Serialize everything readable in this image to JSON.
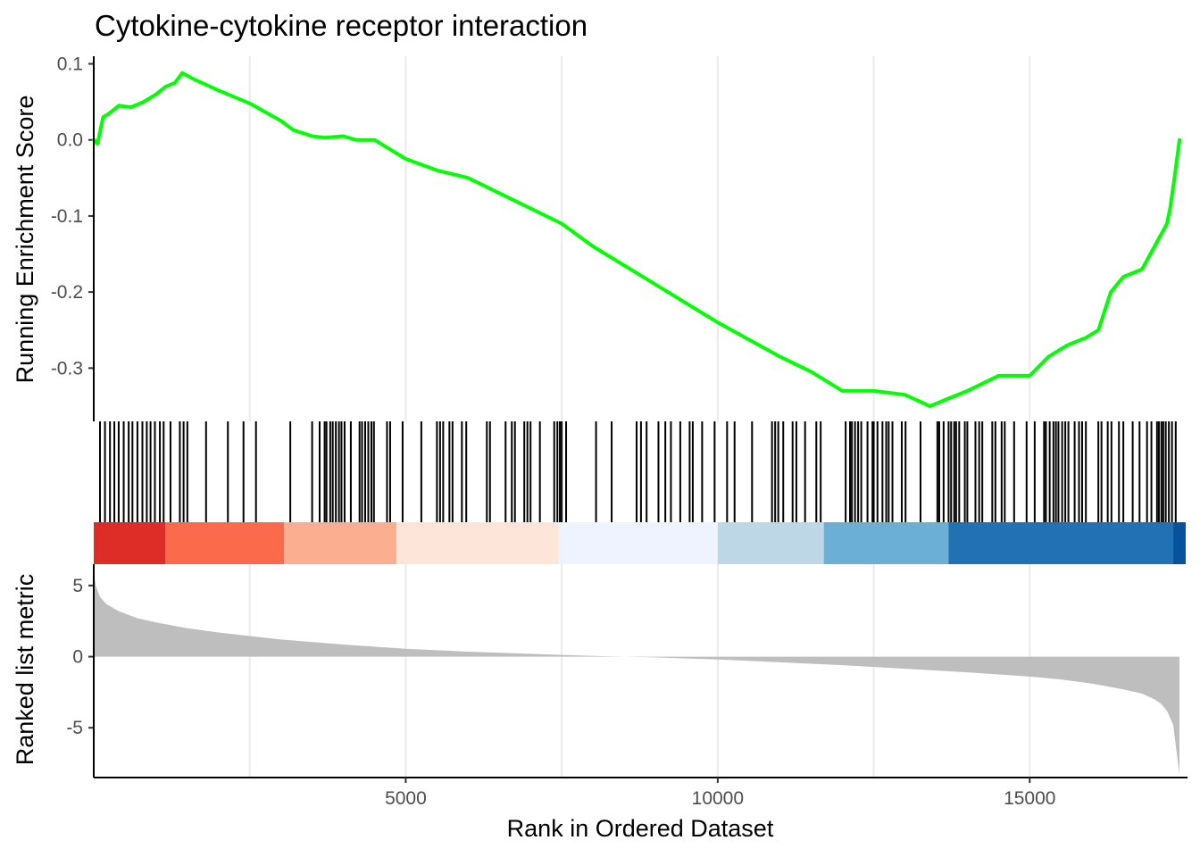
{
  "chart_data": {
    "type": "line",
    "title": "Cytokine-cytokine receptor interaction",
    "xlabel": "Rank in Ordered Dataset",
    "xlim": [
      0,
      17500
    ],
    "x_ticks": [
      {
        "value": 5000,
        "label": "5000"
      },
      {
        "value": 10000,
        "label": "10000"
      },
      {
        "value": 15000,
        "label": "15000"
      }
    ],
    "x_gridlines": [
      2500,
      5000,
      7500,
      10000,
      12500,
      15000
    ],
    "grid": true,
    "running_score": {
      "ylabel": "Running Enrichment Score",
      "ylim": [
        -0.37,
        0.11
      ],
      "color": "#00FF00",
      "y_ticks": [
        {
          "value": 0.1,
          "label": "0.1"
        },
        {
          "value": 0.0,
          "label": "0.0"
        },
        {
          "value": -0.1,
          "label": "-0.1"
        },
        {
          "value": -0.2,
          "label": "-0.2"
        },
        {
          "value": -0.3,
          "label": "-0.3"
        }
      ],
      "x": [
        0,
        60,
        150,
        250,
        400,
        600,
        800,
        1000,
        1150,
        1300,
        1420,
        1600,
        2000,
        2500,
        3000,
        3200,
        3500,
        3700,
        4000,
        4200,
        4500,
        5000,
        5500,
        6000,
        6500,
        7000,
        7500,
        8000,
        9000,
        10000,
        11000,
        11500,
        12000,
        12500,
        13000,
        13400,
        13700,
        14000,
        14500,
        15000,
        15300,
        15600,
        15900,
        16100,
        16300,
        16500,
        16800,
        17000,
        17200,
        17250,
        17320,
        17400
      ],
      "y": [
        0.0,
        -0.005,
        0.03,
        0.035,
        0.045,
        0.043,
        0.05,
        0.06,
        0.07,
        0.075,
        0.088,
        0.08,
        0.065,
        0.048,
        0.025,
        0.013,
        0.005,
        0.003,
        0.005,
        0.0,
        0.0,
        -0.025,
        -0.04,
        -0.05,
        -0.07,
        -0.09,
        -0.11,
        -0.14,
        -0.19,
        -0.24,
        -0.285,
        -0.305,
        -0.33,
        -0.33,
        -0.335,
        -0.35,
        -0.34,
        -0.33,
        -0.31,
        -0.31,
        -0.285,
        -0.27,
        -0.26,
        -0.25,
        -0.2,
        -0.18,
        -0.17,
        -0.14,
        -0.11,
        -0.09,
        -0.05,
        0.0
      ]
    },
    "gene_hits": {
      "positions": [
        100,
        180,
        260,
        330,
        400,
        480,
        560,
        620,
        700,
        780,
        850,
        910,
        980,
        1060,
        1120,
        1230,
        1380,
        1440,
        1500,
        1800,
        2150,
        2400,
        2600,
        3150,
        3500,
        3620,
        3700,
        3730,
        3790,
        3830,
        3880,
        3930,
        3970,
        4020,
        4120,
        4260,
        4300,
        4350,
        4400,
        4450,
        4490,
        4700,
        4750,
        4950,
        5250,
        5500,
        5550,
        5600,
        5700,
        5750,
        5900,
        5970,
        6300,
        6350,
        6600,
        6700,
        6750,
        6900,
        6950,
        7000,
        7150,
        7380,
        7430,
        7470,
        7500,
        7570,
        8050,
        8300,
        8700,
        8770,
        8860,
        9050,
        9160,
        9250,
        9400,
        9550,
        9600,
        9750,
        9950,
        10150,
        10270,
        10550,
        10870,
        10920,
        10970,
        11050,
        11200,
        11260,
        11400,
        11580,
        11650,
        12050,
        12120,
        12150,
        12200,
        12250,
        12300,
        12400,
        12480,
        12500,
        12560,
        12640,
        12700,
        12740,
        12800,
        12950,
        13010,
        13250,
        13520,
        13550,
        13620,
        13700,
        13740,
        13790,
        13820,
        13870,
        13960,
        14000,
        14130,
        14190,
        14240,
        14400,
        14450,
        14550,
        14600,
        14750,
        14950,
        15080,
        15230,
        15260,
        15320,
        15380,
        15420,
        15460,
        15520,
        15570,
        15620,
        15720,
        15790,
        15840,
        15900,
        16100,
        16150,
        16250,
        16310,
        16430,
        16500,
        16650,
        16760,
        16880,
        16950,
        17040,
        17070,
        17110,
        17140,
        17180,
        17230,
        17280,
        17340
      ]
    },
    "rank_heatmap": {
      "segments": [
        {
          "x0": 0,
          "x1": 1150,
          "color": "#DE2D26"
        },
        {
          "x0": 1150,
          "x1": 3050,
          "color": "#FB6A4A"
        },
        {
          "x0": 3050,
          "x1": 4850,
          "color": "#FCAE91"
        },
        {
          "x0": 4850,
          "x1": 7450,
          "color": "#FEE5D9"
        },
        {
          "x0": 7450,
          "x1": 10000,
          "color": "#EFF3FF"
        },
        {
          "x0": 10000,
          "x1": 11700,
          "color": "#BDD7E7"
        },
        {
          "x0": 11700,
          "x1": 13700,
          "color": "#6BAED6"
        },
        {
          "x0": 13700,
          "x1": 17300,
          "color": "#2171B5"
        },
        {
          "x0": 17300,
          "x1": 17500,
          "color": "#08519C"
        }
      ]
    },
    "ranked_metric": {
      "ylabel": "Ranked list metric",
      "ylim": [
        -8.5,
        6.5
      ],
      "fill_color": "#BEBEBE",
      "y_ticks": [
        {
          "value": 5,
          "label": "5"
        },
        {
          "value": 0,
          "label": "0"
        },
        {
          "value": -5,
          "label": "-5"
        }
      ],
      "x": [
        0,
        30,
        100,
        200,
        400,
        700,
        1000,
        1500,
        2000,
        2500,
        3000,
        4000,
        5000,
        6000,
        7000,
        8000,
        8500,
        9000,
        10000,
        11000,
        12000,
        13000,
        14000,
        15000,
        15500,
        16000,
        16500,
        16800,
        17000,
        17100,
        17200,
        17300,
        17400
      ],
      "y": [
        6.0,
        5.0,
        4.2,
        3.7,
        3.2,
        2.7,
        2.4,
        2.0,
        1.7,
        1.45,
        1.2,
        0.85,
        0.55,
        0.35,
        0.2,
        0.05,
        0.0,
        -0.05,
        -0.2,
        -0.4,
        -0.6,
        -0.85,
        -1.1,
        -1.4,
        -1.6,
        -1.9,
        -2.3,
        -2.6,
        -3.0,
        -3.3,
        -3.8,
        -4.8,
        -8.3
      ]
    }
  }
}
